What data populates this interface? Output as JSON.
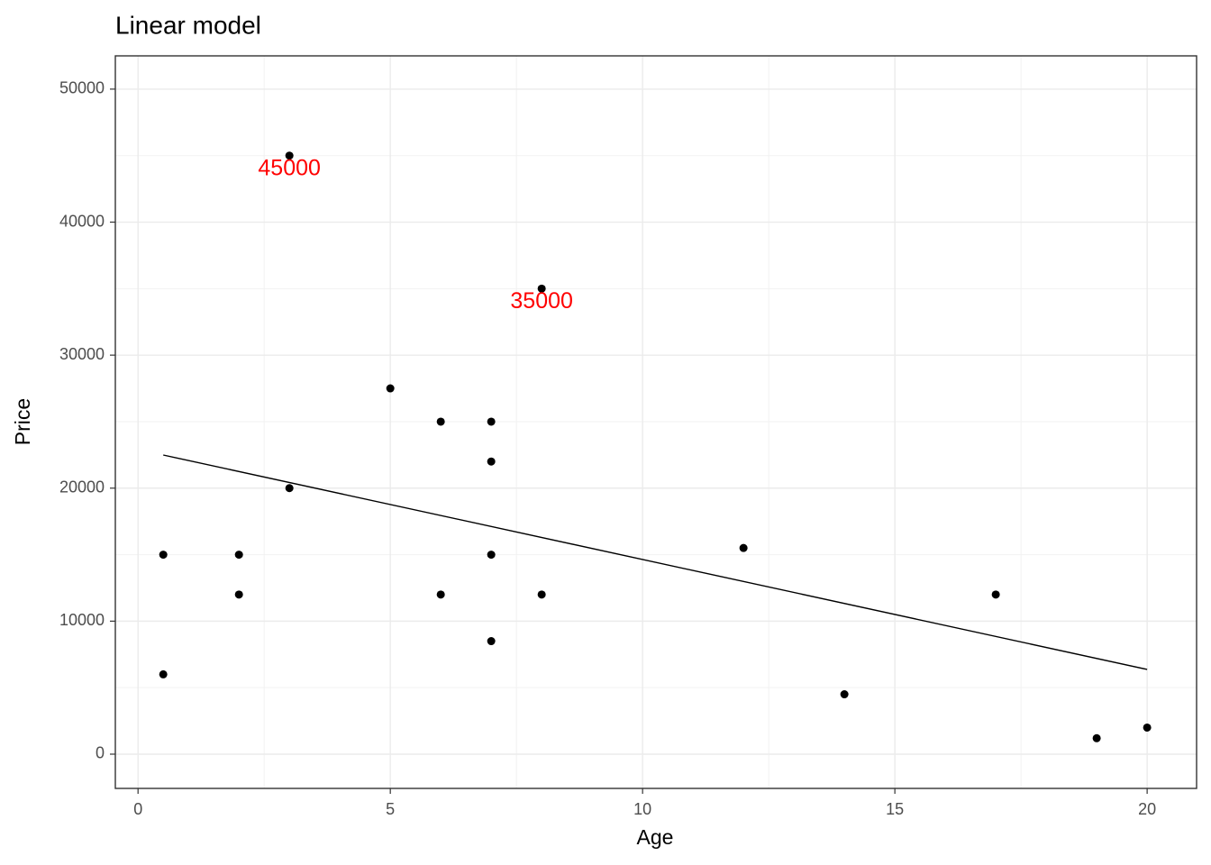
{
  "chart_data": {
    "type": "scatter",
    "title": "Linear model",
    "x_label": "Age",
    "y_label": "Price",
    "color": "#000000",
    "grid": true,
    "x": [
      0.5,
      0.5,
      2,
      2,
      3,
      3,
      5,
      6,
      6,
      7,
      7,
      7,
      7,
      8,
      8,
      12,
      14,
      17,
      19,
      20
    ],
    "values": [
      15000,
      6000,
      15000,
      12000,
      45000,
      20000,
      27500,
      25000,
      12000,
      25000,
      22000,
      15000,
      8500,
      35000,
      12000,
      15500,
      4500,
      12000,
      1200,
      2000
    ],
    "line": {
      "x": [
        0.5,
        20
      ],
      "values": [
        22490,
        6370
      ],
      "color": "#000000"
    },
    "annotations": [
      {
        "label": "45000",
        "x": 3,
        "y": 45000,
        "color": "#ff0000"
      },
      {
        "label": "35000",
        "x": 8,
        "y": 35000,
        "color": "#ff0000"
      }
    ],
    "xlim": [
      -0.45,
      20.98
    ],
    "ylim": [
      -2575,
      52500
    ],
    "xticks": [
      0,
      5,
      10,
      15,
      20
    ],
    "yticks": [
      0,
      10000,
      20000,
      30000,
      40000,
      50000
    ]
  }
}
